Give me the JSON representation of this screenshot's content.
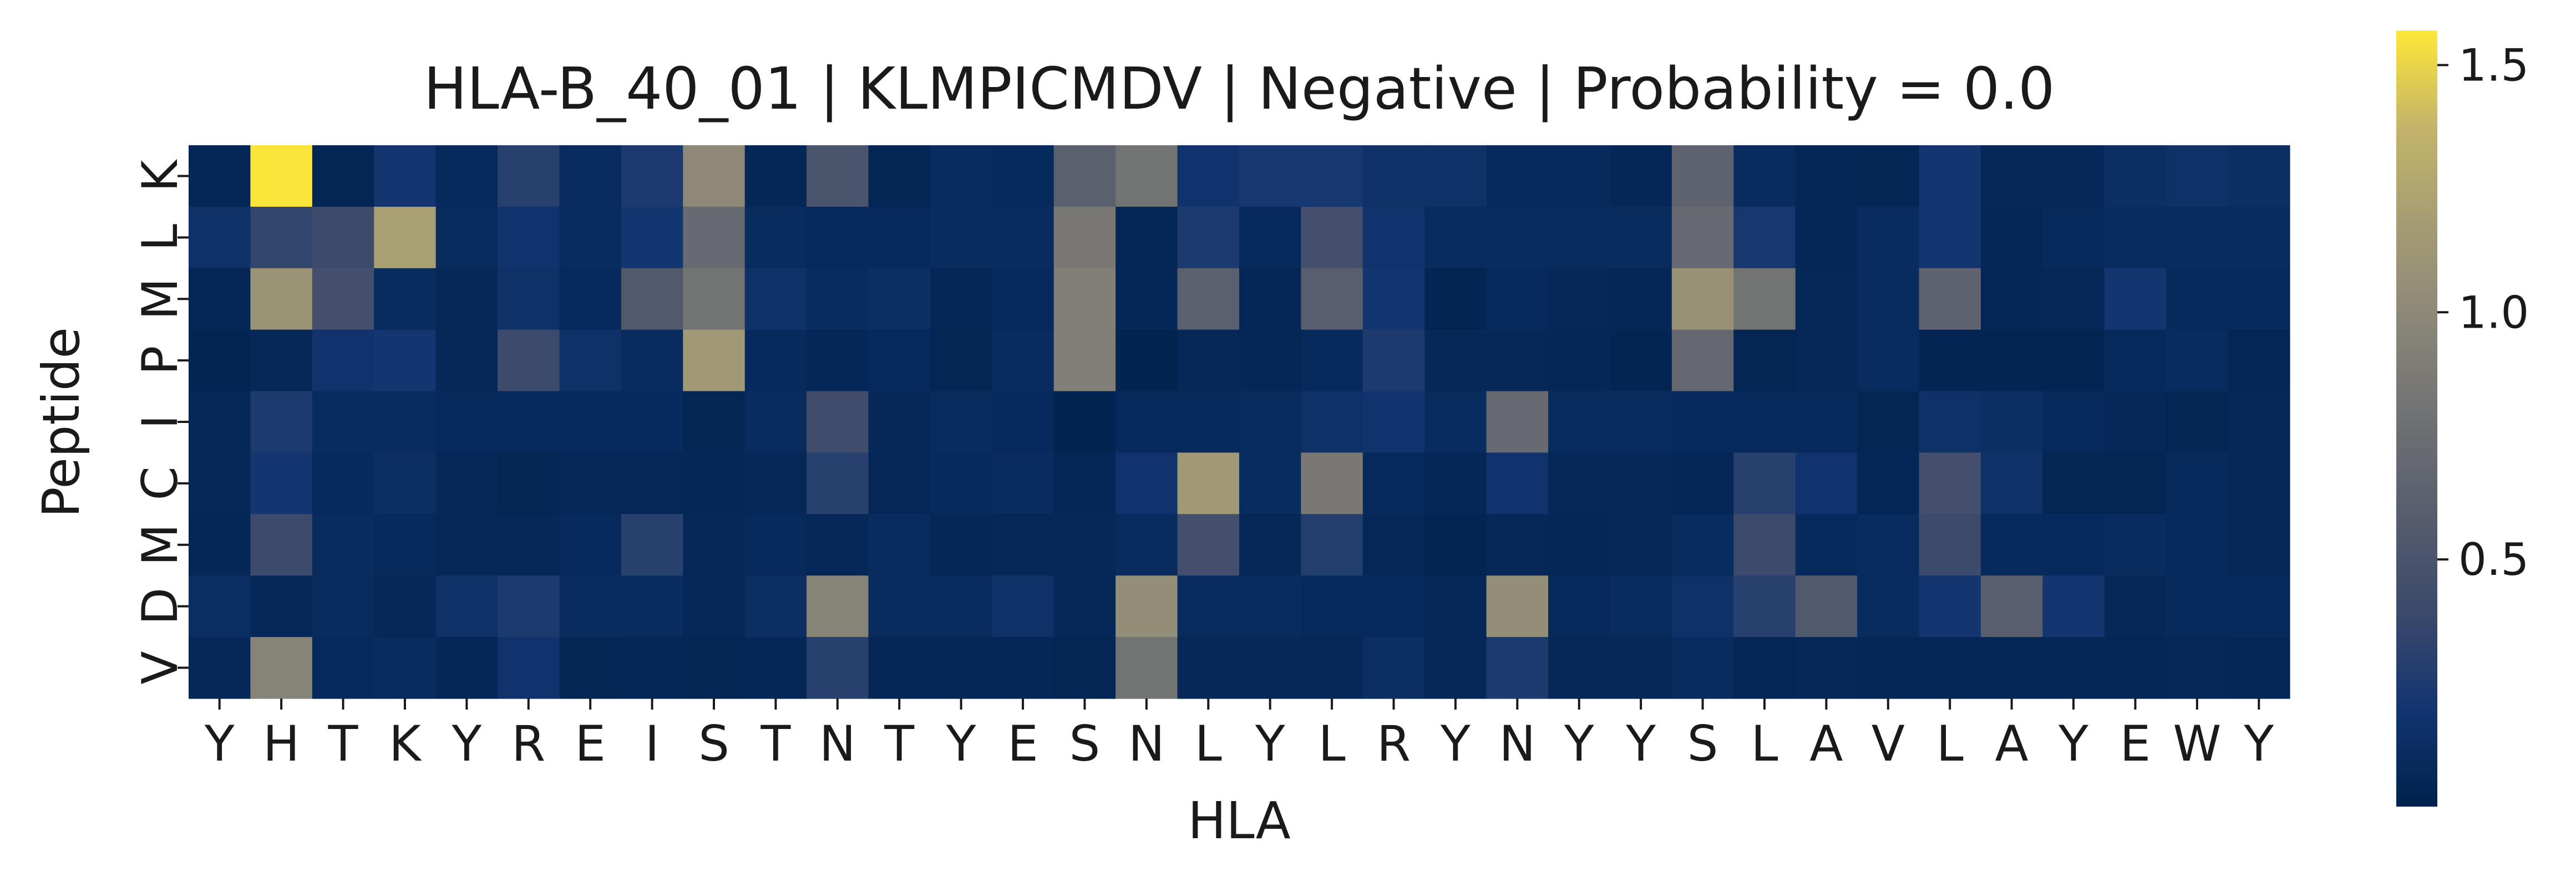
{
  "chart_data": {
    "type": "heatmap",
    "title": "HLA-B_40_01 | KLMPICMDV | Negative | Probability = 0.0",
    "xlabel": "HLA",
    "ylabel": "Peptide",
    "x_tick_labels": [
      "Y",
      "H",
      "T",
      "K",
      "Y",
      "R",
      "E",
      "I",
      "S",
      "T",
      "N",
      "T",
      "Y",
      "E",
      "S",
      "N",
      "L",
      "Y",
      "L",
      "R",
      "Y",
      "N",
      "Y",
      "Y",
      "S",
      "L",
      "A",
      "V",
      "L",
      "A",
      "Y",
      "E",
      "W",
      "Y"
    ],
    "y_tick_labels": [
      "K",
      "L",
      "M",
      "P",
      "I",
      "C",
      "M",
      "D",
      "V"
    ],
    "colormap": "cividis",
    "colorbar": {
      "range": [
        0.0,
        1.57
      ],
      "ticks": [
        0.5,
        1.0,
        1.5
      ],
      "tick_labels": [
        "0.5",
        "1.0",
        "1.5"
      ]
    },
    "values": [
      [
        0.05,
        1.56,
        0.04,
        0.2,
        0.08,
        0.3,
        0.1,
        0.25,
        1.0,
        0.05,
        0.5,
        0.04,
        0.1,
        0.08,
        0.62,
        0.8,
        0.18,
        0.22,
        0.22,
        0.15,
        0.15,
        0.08,
        0.08,
        0.05,
        0.65,
        0.1,
        0.05,
        0.04,
        0.2,
        0.06,
        0.06,
        0.12,
        0.15,
        0.12
      ],
      [
        0.15,
        0.35,
        0.4,
        1.2,
        0.1,
        0.18,
        0.1,
        0.2,
        0.72,
        0.1,
        0.08,
        0.08,
        0.1,
        0.1,
        0.85,
        0.05,
        0.25,
        0.08,
        0.45,
        0.18,
        0.1,
        0.1,
        0.1,
        0.1,
        0.72,
        0.22,
        0.05,
        0.1,
        0.2,
        0.05,
        0.08,
        0.1,
        0.1,
        0.1
      ],
      [
        0.05,
        1.1,
        0.45,
        0.1,
        0.06,
        0.15,
        0.08,
        0.55,
        0.8,
        0.15,
        0.1,
        0.12,
        0.05,
        0.08,
        0.92,
        0.05,
        0.62,
        0.05,
        0.6,
        0.2,
        0.03,
        0.08,
        0.06,
        0.05,
        1.08,
        0.8,
        0.06,
        0.1,
        0.65,
        0.05,
        0.06,
        0.2,
        0.08,
        0.08
      ],
      [
        0.03,
        0.06,
        0.18,
        0.2,
        0.06,
        0.4,
        0.15,
        0.1,
        1.15,
        0.08,
        0.05,
        0.08,
        0.04,
        0.1,
        0.92,
        0.02,
        0.06,
        0.05,
        0.08,
        0.25,
        0.06,
        0.06,
        0.05,
        0.03,
        0.7,
        0.04,
        0.06,
        0.1,
        0.03,
        0.03,
        0.03,
        0.08,
        0.1,
        0.05
      ],
      [
        0.06,
        0.25,
        0.1,
        0.1,
        0.08,
        0.08,
        0.08,
        0.08,
        0.04,
        0.1,
        0.42,
        0.06,
        0.1,
        0.08,
        0.02,
        0.08,
        0.08,
        0.1,
        0.15,
        0.18,
        0.1,
        0.72,
        0.1,
        0.1,
        0.08,
        0.08,
        0.08,
        0.04,
        0.15,
        0.12,
        0.08,
        0.06,
        0.04,
        0.06
      ],
      [
        0.06,
        0.2,
        0.08,
        0.12,
        0.06,
        0.04,
        0.06,
        0.06,
        0.05,
        0.06,
        0.3,
        0.06,
        0.08,
        0.1,
        0.05,
        0.18,
        1.15,
        0.1,
        0.85,
        0.08,
        0.05,
        0.18,
        0.06,
        0.06,
        0.05,
        0.3,
        0.18,
        0.05,
        0.45,
        0.15,
        0.04,
        0.04,
        0.08,
        0.06
      ],
      [
        0.05,
        0.4,
        0.1,
        0.08,
        0.06,
        0.06,
        0.08,
        0.3,
        0.06,
        0.08,
        0.06,
        0.1,
        0.05,
        0.06,
        0.06,
        0.1,
        0.45,
        0.06,
        0.28,
        0.06,
        0.03,
        0.06,
        0.05,
        0.06,
        0.1,
        0.4,
        0.08,
        0.1,
        0.4,
        0.08,
        0.08,
        0.1,
        0.08,
        0.06
      ],
      [
        0.12,
        0.06,
        0.1,
        0.06,
        0.15,
        0.25,
        0.1,
        0.1,
        0.06,
        0.12,
        0.95,
        0.1,
        0.1,
        0.15,
        0.06,
        1.05,
        0.1,
        0.1,
        0.08,
        0.08,
        0.06,
        1.05,
        0.08,
        0.1,
        0.15,
        0.3,
        0.55,
        0.1,
        0.2,
        0.6,
        0.2,
        0.06,
        0.08,
        0.08
      ],
      [
        0.06,
        0.95,
        0.08,
        0.1,
        0.05,
        0.18,
        0.04,
        0.05,
        0.04,
        0.05,
        0.3,
        0.05,
        0.05,
        0.05,
        0.04,
        0.8,
        0.06,
        0.06,
        0.06,
        0.12,
        0.06,
        0.25,
        0.06,
        0.06,
        0.1,
        0.05,
        0.06,
        0.05,
        0.05,
        0.05,
        0.05,
        0.05,
        0.06,
        0.05
      ]
    ]
  }
}
